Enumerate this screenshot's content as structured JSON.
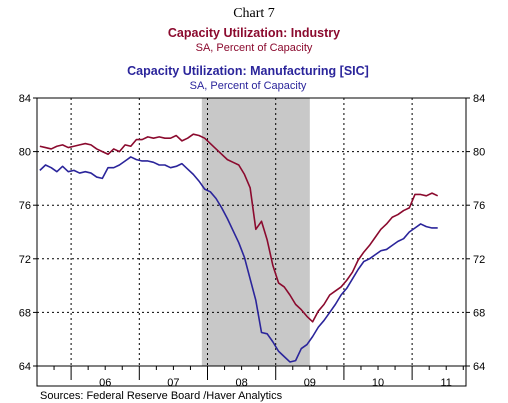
{
  "chart_heading": "Chart 7",
  "source": "Sources:  Federal Reserve Board /Haver Analytics",
  "colors": {
    "industry": "#8b0a2e",
    "manufacturing": "#2b259b",
    "recession": "#c8c8c8",
    "frame": "#000000"
  },
  "chart_data": {
    "type": "line",
    "series": [
      {
        "name": "Capacity Utilization: Industry",
        "subtitle": "SA, Percent of Capacity",
        "color": "#8b0a2e",
        "x": [
          "2005-07",
          "2005-08",
          "2005-09",
          "2005-10",
          "2005-11",
          "2005-12",
          "2006-01",
          "2006-02",
          "2006-03",
          "2006-04",
          "2006-05",
          "2006-06",
          "2006-07",
          "2006-08",
          "2006-09",
          "2006-10",
          "2006-11",
          "2006-12",
          "2007-01",
          "2007-02",
          "2007-03",
          "2007-04",
          "2007-05",
          "2007-06",
          "2007-07",
          "2007-08",
          "2007-09",
          "2007-10",
          "2007-11",
          "2007-12",
          "2008-01",
          "2008-02",
          "2008-03",
          "2008-04",
          "2008-05",
          "2008-06",
          "2008-07",
          "2008-08",
          "2008-09",
          "2008-10",
          "2008-11",
          "2008-12",
          "2009-01",
          "2009-02",
          "2009-03",
          "2009-04",
          "2009-05",
          "2009-06",
          "2009-07",
          "2009-08",
          "2009-09",
          "2009-10",
          "2009-11",
          "2009-12",
          "2010-01",
          "2010-02",
          "2010-03",
          "2010-04",
          "2010-05",
          "2010-06",
          "2010-07",
          "2010-08",
          "2010-09",
          "2010-10",
          "2010-11",
          "2010-12",
          "2011-01",
          "2011-02",
          "2011-03",
          "2011-04",
          "2011-05"
        ],
        "values": [
          80.4,
          80.3,
          80.2,
          80.4,
          80.5,
          80.3,
          80.4,
          80.5,
          80.6,
          80.5,
          80.2,
          80.0,
          79.8,
          80.2,
          80.0,
          80.5,
          80.4,
          80.9,
          80.9,
          81.1,
          81.0,
          81.1,
          81.0,
          81.0,
          81.2,
          80.8,
          81.0,
          81.3,
          81.2,
          81.0,
          80.6,
          80.2,
          79.8,
          79.4,
          79.2,
          79.0,
          78.3,
          77.3,
          74.2,
          74.8,
          73.4,
          71.5,
          70.2,
          69.9,
          69.3,
          68.6,
          68.2,
          67.7,
          67.3,
          68.1,
          68.6,
          69.3,
          69.6,
          69.9,
          70.4,
          71.0,
          71.9,
          72.5,
          73.0,
          73.6,
          74.2,
          74.6,
          75.1,
          75.3,
          75.6,
          75.8,
          76.8,
          76.8,
          76.7,
          76.9,
          76.7
        ]
      },
      {
        "name": "Capacity Utilization: Manufacturing [SIC]",
        "subtitle": "SA, Percent of Capacity",
        "color": "#2b259b",
        "x": [
          "2005-07",
          "2005-08",
          "2005-09",
          "2005-10",
          "2005-11",
          "2005-12",
          "2006-01",
          "2006-02",
          "2006-03",
          "2006-04",
          "2006-05",
          "2006-06",
          "2006-07",
          "2006-08",
          "2006-09",
          "2006-10",
          "2006-11",
          "2006-12",
          "2007-01",
          "2007-02",
          "2007-03",
          "2007-04",
          "2007-05",
          "2007-06",
          "2007-07",
          "2007-08",
          "2007-09",
          "2007-10",
          "2007-11",
          "2007-12",
          "2008-01",
          "2008-02",
          "2008-03",
          "2008-04",
          "2008-05",
          "2008-06",
          "2008-07",
          "2008-08",
          "2008-09",
          "2008-10",
          "2008-11",
          "2008-12",
          "2009-01",
          "2009-02",
          "2009-03",
          "2009-04",
          "2009-05",
          "2009-06",
          "2009-07",
          "2009-08",
          "2009-09",
          "2009-10",
          "2009-11",
          "2009-12",
          "2010-01",
          "2010-02",
          "2010-03",
          "2010-04",
          "2010-05",
          "2010-06",
          "2010-07",
          "2010-08",
          "2010-09",
          "2010-10",
          "2010-11",
          "2010-12",
          "2011-01",
          "2011-02",
          "2011-03",
          "2011-04",
          "2011-05"
        ],
        "values": [
          78.6,
          79.0,
          78.8,
          78.5,
          78.9,
          78.5,
          78.6,
          78.4,
          78.5,
          78.4,
          78.1,
          78.0,
          78.8,
          78.8,
          79.0,
          79.3,
          79.6,
          79.4,
          79.3,
          79.3,
          79.2,
          79.0,
          79.0,
          78.8,
          78.9,
          79.1,
          78.7,
          78.3,
          77.8,
          77.2,
          77.0,
          76.5,
          75.8,
          75.0,
          74.1,
          73.2,
          72.1,
          70.5,
          68.9,
          66.5,
          66.4,
          65.8,
          65.1,
          64.7,
          64.3,
          64.4,
          65.3,
          65.6,
          66.2,
          66.9,
          67.4,
          68.0,
          68.6,
          69.3,
          69.8,
          70.5,
          71.2,
          71.8,
          72.0,
          72.3,
          72.6,
          72.7,
          73.0,
          73.3,
          73.5,
          74.0,
          74.3,
          74.6,
          74.4,
          74.3,
          74.3
        ]
      }
    ],
    "y_ticks": [
      "84",
      "80",
      "76",
      "72",
      "68",
      "64"
    ],
    "ylim": [
      64,
      84
    ],
    "x_tick_labels": [
      "06",
      "07",
      "08",
      "09",
      "10",
      "11"
    ],
    "recession_shade": [
      "2007-12",
      "2009-06"
    ],
    "grid": true
  }
}
